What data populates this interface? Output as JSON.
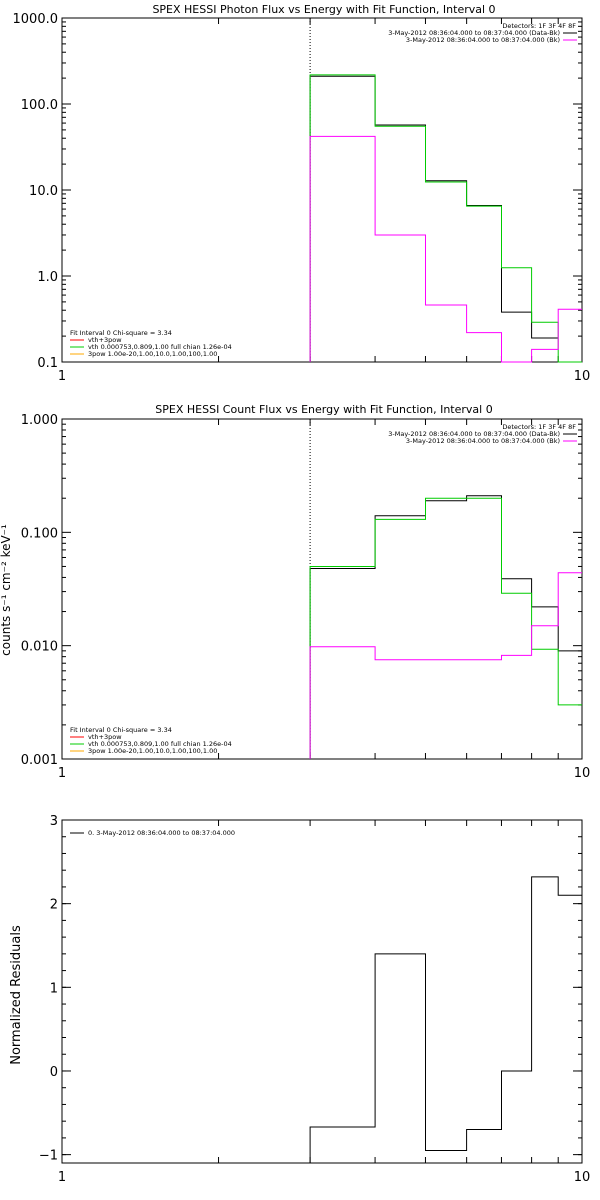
{
  "chart_data": [
    {
      "type": "line",
      "step": true,
      "title": "SPEX HESSI Photon Flux vs Energy with Fit Function, Interval 0",
      "xscale": "log",
      "yscale": "log",
      "xlim": [
        1,
        10
      ],
      "ylim": [
        0.1,
        1000
      ],
      "xticks": [
        {
          "v": 1,
          "label": "1"
        },
        {
          "v": 10,
          "label": "10"
        }
      ],
      "yticks": [
        {
          "v": 0.1,
          "label": "0.1"
        },
        {
          "v": 1,
          "label": "1.0"
        },
        {
          "v": 10,
          "label": "10.0"
        },
        {
          "v": 100,
          "label": "100.0"
        },
        {
          "v": 1000,
          "label": "1000.0"
        }
      ],
      "vline": 3,
      "legend_top": {
        "title": "Detectors: 1F 3F 4F 8F",
        "entries": [
          {
            "label": "3-May-2012 08:36:04.000 to 08:37:04.000 (Data-Bk)",
            "color": "#000000"
          },
          {
            "label": "3-May-2012 08:36:04.000 to 08:37:04.000 (Bk)",
            "color": "#ff00ff"
          }
        ]
      },
      "legend_bottom": {
        "title": "Fit Interval 0   Chi-square = 3.34",
        "entries": [
          {
            "label": "vth+3pow",
            "color": "#ff0000"
          },
          {
            "label": "vth 0.000753,0.809,1.00  full chian 1.26e-04",
            "color": "#00cc00"
          },
          {
            "label": "3pow 1.00e-20,1.00,10.0,1.00,100,1.00",
            "color": "#ffaa00"
          }
        ]
      },
      "edges": [
        3,
        4,
        5,
        6,
        7,
        8,
        9,
        10
      ],
      "series": [
        {
          "color": "#000000",
          "values": [
            210,
            57,
            12.8,
            6.6,
            0.38,
            0.19,
            null
          ]
        },
        {
          "color": "#00cc00",
          "values": [
            218,
            55,
            12.4,
            6.5,
            1.25,
            0.29,
            0.1
          ]
        },
        {
          "color": "#ff00ff",
          "values": [
            42,
            3.0,
            0.46,
            0.22,
            0.095,
            0.14,
            0.41
          ]
        }
      ]
    },
    {
      "type": "line",
      "step": true,
      "title": "SPEX HESSI Count Flux vs Energy with Fit Function, Interval 0",
      "ylabel": "counts s⁻¹ cm⁻² keV⁻¹",
      "xscale": "log",
      "yscale": "log",
      "xlim": [
        1,
        10
      ],
      "ylim": [
        0.001,
        1
      ],
      "xticks": [
        {
          "v": 1,
          "label": "1"
        },
        {
          "v": 10,
          "label": "10"
        }
      ],
      "yticks": [
        {
          "v": 0.001,
          "label": "0.001"
        },
        {
          "v": 0.01,
          "label": "0.010"
        },
        {
          "v": 0.1,
          "label": "0.100"
        },
        {
          "v": 1,
          "label": "1.000"
        }
      ],
      "vline": 3,
      "legend_top": {
        "title": "Detectors: 1F 3F 4F 8F",
        "entries": [
          {
            "label": "3-May-2012 08:36:04.000 to 08:37:04.000 (Data-Bk)",
            "color": "#000000"
          },
          {
            "label": "3-May-2012 08:36:04.000 to 08:37:04.000 (Bk)",
            "color": "#ff00ff"
          }
        ]
      },
      "legend_bottom": {
        "title": "Fit Interval 0   Chi-square = 3.34",
        "entries": [
          {
            "label": "vth+3pow",
            "color": "#ff0000"
          },
          {
            "label": "vth 0.000753,0.809,1.00  full chian 1.26e-04",
            "color": "#00cc00"
          },
          {
            "label": "3pow 1.00e-20,1.00,10.0,1.00,100,1.00",
            "color": "#ffaa00"
          }
        ]
      },
      "edges": [
        3,
        4,
        5,
        6,
        7,
        8,
        9,
        10
      ],
      "series": [
        {
          "color": "#000000",
          "values": [
            0.048,
            0.14,
            0.19,
            0.21,
            0.039,
            0.022,
            0.009
          ]
        },
        {
          "color": "#00cc00",
          "values": [
            0.05,
            0.13,
            0.2,
            0.2,
            0.029,
            0.0093,
            0.003
          ]
        },
        {
          "color": "#ff00ff",
          "values": [
            0.0098,
            0.0075,
            0.0075,
            0.0075,
            0.0082,
            0.015,
            0.044
          ]
        }
      ]
    },
    {
      "type": "line",
      "step": true,
      "ylabel": "Normalized Residuals",
      "xscale": "log",
      "yscale": "linear",
      "xlim": [
        1,
        10
      ],
      "ylim": [
        -1.1,
        3
      ],
      "xticks": [
        {
          "v": 1,
          "label": "1"
        },
        {
          "v": 10,
          "label": "10"
        }
      ],
      "yticks": [
        {
          "v": -1,
          "label": "−1"
        },
        {
          "v": 0,
          "label": "0"
        },
        {
          "v": 1,
          "label": "1"
        },
        {
          "v": 2,
          "label": "2"
        },
        {
          "v": 3,
          "label": "3"
        }
      ],
      "legend_top": {
        "title": "",
        "entries": [
          {
            "label": "0. 3-May-2012 08:36:04.000 to 08:37:04.000",
            "color": "#000000"
          }
        ]
      },
      "edges": [
        3,
        4,
        5,
        6,
        7,
        8,
        9,
        10
      ],
      "series": [
        {
          "color": "#000000",
          "values": [
            -0.67,
            1.4,
            -0.95,
            -0.7,
            0.0,
            2.32,
            2.1
          ]
        }
      ]
    }
  ]
}
